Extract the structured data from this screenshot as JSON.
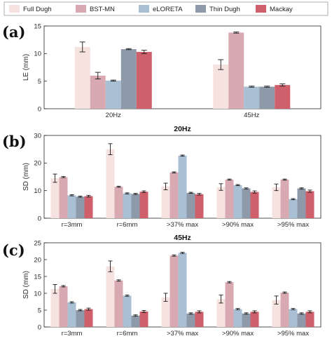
{
  "legend": [
    "Full Dugh",
    "BST-MN",
    "eLORETA",
    "Thin Dugh",
    "Mackay"
  ],
  "colors": [
    "#f6e3e0",
    "#d9a9b2",
    "#a9bfd4",
    "#8e9aaa",
    "#cf5f6b"
  ],
  "chart_data": [
    {
      "panel_label": "(a)",
      "type": "bar",
      "title": "",
      "ylabel": "LE (mm)",
      "ylim": [
        0,
        15
      ],
      "yticks": [
        "0",
        "5",
        "10",
        "15"
      ],
      "categories": [
        "20Hz",
        "45Hz"
      ],
      "series": [
        {
          "name": "Full Dugh",
          "values": [
            11.2,
            8.0
          ],
          "errors": [
            0.9,
            0.9
          ]
        },
        {
          "name": "BST-MN",
          "values": [
            6.0,
            13.8
          ],
          "errors": [
            0.6,
            0.1
          ]
        },
        {
          "name": "eLORETA",
          "values": [
            5.1,
            4.0
          ],
          "errors": [
            0.1,
            0.1
          ]
        },
        {
          "name": "Thin Dugh",
          "values": [
            10.8,
            4.0
          ],
          "errors": [
            0.1,
            0.1
          ]
        },
        {
          "name": "Mackay",
          "values": [
            10.3,
            4.3
          ],
          "errors": [
            0.3,
            0.2
          ]
        }
      ],
      "grid": false,
      "legend_position": "top"
    },
    {
      "panel_label": "(b)",
      "type": "bar",
      "title": "20Hz",
      "ylabel": "SD (mm)",
      "ylim": [
        0,
        30
      ],
      "yticks": [
        "0",
        "10",
        "20",
        "30"
      ],
      "categories": [
        "r=3mm",
        "r=6mm",
        ">37% max",
        ">90% max",
        ">95% max"
      ],
      "series": [
        {
          "name": "Full Dugh",
          "values": [
            14.5,
            25.0,
            11.5,
            11.3,
            11.2
          ],
          "errors": [
            1.5,
            2.0,
            1.2,
            1.2,
            1.2
          ]
        },
        {
          "name": "BST-MN",
          "values": [
            14.9,
            11.4,
            16.6,
            14.0,
            14.0
          ],
          "errors": [
            0.2,
            0.2,
            0.2,
            0.2,
            0.2
          ]
        },
        {
          "name": "eLORETA",
          "values": [
            8.3,
            9.0,
            22.7,
            12.0,
            6.9
          ],
          "errors": [
            0.2,
            0.2,
            0.2,
            0.2,
            0.2
          ]
        },
        {
          "name": "Thin Dugh",
          "values": [
            7.8,
            8.8,
            9.2,
            10.8,
            10.8
          ],
          "errors": [
            0.2,
            0.2,
            0.2,
            0.2,
            0.2
          ]
        },
        {
          "name": "Mackay",
          "values": [
            8.0,
            9.6,
            8.7,
            9.5,
            9.8
          ],
          "errors": [
            0.3,
            0.3,
            0.3,
            0.4,
            0.4
          ]
        }
      ],
      "grid": false
    },
    {
      "panel_label": "(c)",
      "type": "bar",
      "title": "45Hz",
      "ylabel": "SD (mm)",
      "ylim": [
        0,
        25
      ],
      "yticks": [
        "0",
        "5",
        "10",
        "15",
        "20",
        "25"
      ],
      "categories": [
        "r=3mm",
        "r=6mm",
        ">37% max",
        ">90% max",
        ">95% max"
      ],
      "series": [
        {
          "name": "Full Dugh",
          "values": [
            11.3,
            18.0,
            8.8,
            8.3,
            8.0
          ],
          "errors": [
            1.3,
            1.6,
            1.2,
            1.2,
            1.2
          ]
        },
        {
          "name": "BST-MN",
          "values": [
            12.1,
            13.8,
            21.2,
            13.3,
            10.2
          ],
          "errors": [
            0.2,
            0.2,
            0.2,
            0.2,
            0.2
          ]
        },
        {
          "name": "eLORETA",
          "values": [
            7.3,
            9.3,
            22.0,
            5.3,
            5.3
          ],
          "errors": [
            0.2,
            0.2,
            0.2,
            0.2,
            0.2
          ]
        },
        {
          "name": "Thin Dugh",
          "values": [
            5.0,
            3.4,
            4.0,
            4.0,
            4.0
          ],
          "errors": [
            0.2,
            0.2,
            0.2,
            0.2,
            0.2
          ]
        },
        {
          "name": "Mackay",
          "values": [
            5.3,
            4.6,
            4.5,
            4.5,
            4.5
          ],
          "errors": [
            0.3,
            0.3,
            0.3,
            0.3,
            0.3
          ]
        }
      ],
      "grid": false
    }
  ]
}
